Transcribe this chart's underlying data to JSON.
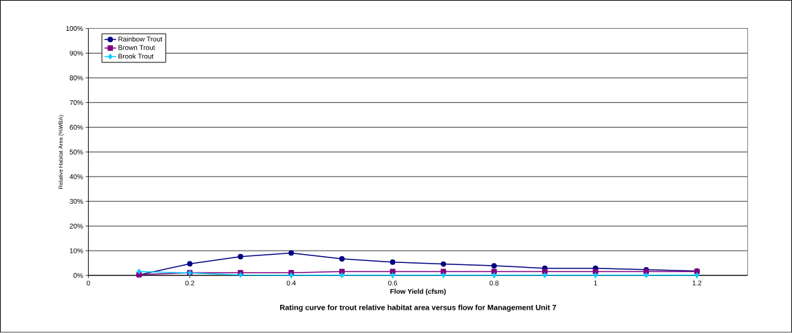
{
  "chart_data": {
    "type": "line",
    "title": "Rating curve for trout relative habitat area versus flow for Management Unit 7",
    "xlabel": "Flow Yield (cfsm)",
    "ylabel": "Relative Habitat Area (%WBA)",
    "x": [
      0.1,
      0.2,
      0.3,
      0.4,
      0.5,
      0.6,
      0.7,
      0.8,
      0.9,
      1.0,
      1.1,
      1.2
    ],
    "series": [
      {
        "name": "Rainbow Trout",
        "color": "#000080",
        "marker": "circle",
        "values": [
          0.2,
          4.7,
          7.6,
          9.1,
          6.7,
          5.4,
          4.6,
          3.9,
          2.9,
          2.9,
          2.3,
          1.8
        ]
      },
      {
        "name": "Brown Trout",
        "color": "#800080",
        "marker": "square",
        "values": [
          0.3,
          1.1,
          1.1,
          1.1,
          1.6,
          1.6,
          1.6,
          1.6,
          1.6,
          1.6,
          1.6,
          1.6
        ]
      },
      {
        "name": "Brook Trout",
        "color": "#00ccff",
        "marker": "diamond",
        "values": [
          1.6,
          1.0,
          0.2,
          0.1,
          0.1,
          0.1,
          0.1,
          0.1,
          0.1,
          0.1,
          0.1,
          0.1
        ]
      }
    ],
    "xlim": [
      0,
      1.3
    ],
    "ylim": [
      0,
      100
    ],
    "xticks": [
      0,
      0.2,
      0.4,
      0.6,
      0.8,
      1,
      1.2
    ],
    "yticks": [
      {
        "value": 0,
        "label": "0%"
      },
      {
        "value": 10,
        "label": "10%"
      },
      {
        "value": 20,
        "label": "20%"
      },
      {
        "value": 30,
        "label": "30%"
      },
      {
        "value": 40,
        "label": "40%"
      },
      {
        "value": 50,
        "label": "50%"
      },
      {
        "value": 60,
        "label": "60%"
      },
      {
        "value": 70,
        "label": "70%"
      },
      {
        "value": 80,
        "label": "80%"
      },
      {
        "value": 90,
        "label": "90%"
      },
      {
        "value": 100,
        "label": "100%"
      }
    ],
    "grid": "y",
    "legend": "top left",
    "line_style": "solid"
  }
}
